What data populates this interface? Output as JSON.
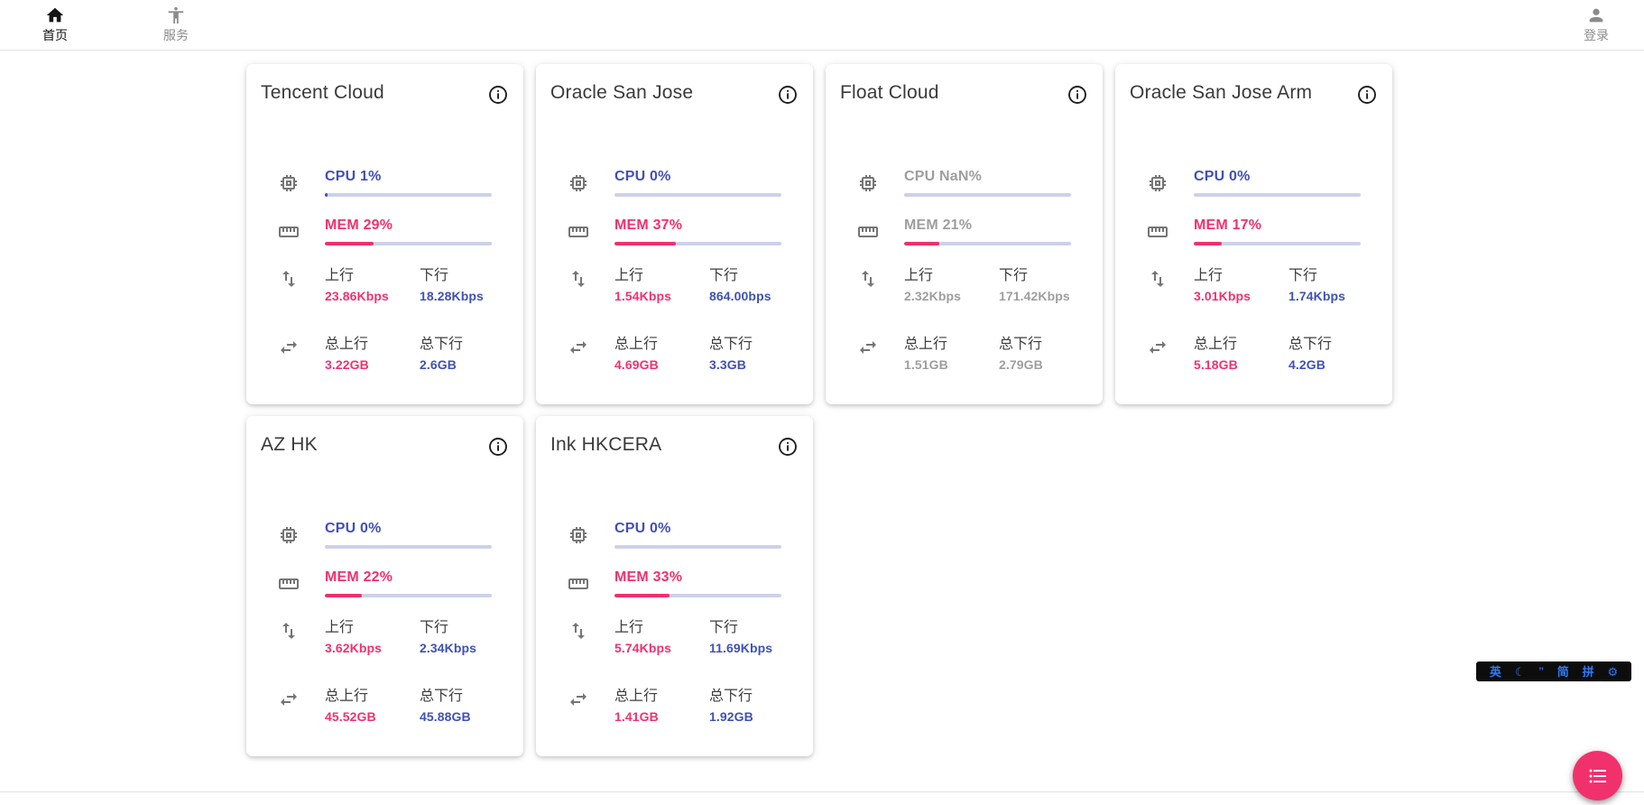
{
  "header": {
    "nav_items": [
      {
        "id": "home",
        "label": "首页"
      },
      {
        "id": "services",
        "label": "服务"
      }
    ],
    "login_label": "登录"
  },
  "metric_labels": {
    "up": "上行",
    "down": "下行",
    "total_up": "总上行",
    "total_down": "总下行"
  },
  "servers": [
    {
      "name": "Tencent Cloud",
      "cpu_text": "CPU 1%",
      "cpu_pct": 1,
      "mem_text": "MEM 29%",
      "mem_pct": 29,
      "up": "23.86Kbps",
      "down": "18.28Kbps",
      "total_up": "3.22GB",
      "total_down": "2.6GB",
      "muted": false
    },
    {
      "name": "Oracle San Jose",
      "cpu_text": "CPU 0%",
      "cpu_pct": 0,
      "mem_text": "MEM 37%",
      "mem_pct": 37,
      "up": "1.54Kbps",
      "down": "864.00bps",
      "total_up": "4.69GB",
      "total_down": "3.3GB",
      "muted": false
    },
    {
      "name": "Float Cloud",
      "cpu_text": "CPU NaN%",
      "cpu_pct": 0,
      "mem_text": "MEM 21%",
      "mem_pct": 21,
      "up": "2.32Kbps",
      "down": "171.42Kbps",
      "total_up": "1.51GB",
      "total_down": "2.79GB",
      "muted": true
    },
    {
      "name": "Oracle San Jose Arm",
      "cpu_text": "CPU 0%",
      "cpu_pct": 0,
      "mem_text": "MEM 17%",
      "mem_pct": 17,
      "up": "3.01Kbps",
      "down": "1.74Kbps",
      "total_up": "5.18GB",
      "total_down": "4.2GB",
      "muted": false
    },
    {
      "name": "AZ HK",
      "cpu_text": "CPU 0%",
      "cpu_pct": 0,
      "mem_text": "MEM 22%",
      "mem_pct": 22,
      "up": "3.62Kbps",
      "down": "2.34Kbps",
      "total_up": "45.52GB",
      "total_down": "45.88GB",
      "muted": false
    },
    {
      "name": "Ink HKCERA",
      "cpu_text": "CPU 0%",
      "cpu_pct": 0,
      "mem_text": "MEM 33%",
      "mem_pct": 33,
      "up": "5.74Kbps",
      "down": "11.69Kbps",
      "total_up": "1.41GB",
      "total_down": "1.92GB",
      "muted": false
    }
  ],
  "ime_bar": {
    "items": [
      "英",
      "☾",
      "’’",
      "简",
      "拼",
      "⚙"
    ]
  },
  "colors": {
    "accent_indigo": "#3f51b5",
    "accent_pink": "#f1316d",
    "muted_gray": "#9e9e9e"
  }
}
